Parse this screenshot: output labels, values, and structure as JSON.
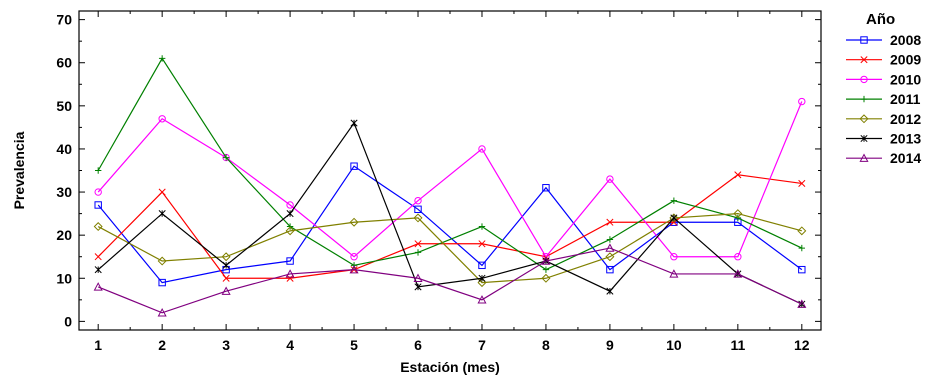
{
  "chart_data": {
    "type": "line",
    "title": "",
    "xlabel": "Estación (mes)",
    "ylabel": "Prevalencia",
    "x": [
      1,
      2,
      3,
      4,
      5,
      6,
      7,
      8,
      9,
      10,
      11,
      12
    ],
    "xlim": [
      0.7,
      12.3
    ],
    "ylim": [
      -2,
      72
    ],
    "yticks": [
      0,
      10,
      20,
      30,
      40,
      50,
      60,
      70
    ],
    "grid": false,
    "legend": {
      "title": "Año",
      "placement": "right"
    },
    "series": [
      {
        "name": "2008",
        "color": "#0000ff",
        "marker": "square",
        "values": [
          27,
          9,
          12,
          14,
          36,
          26,
          13,
          31,
          12,
          23,
          23,
          12
        ]
      },
      {
        "name": "2009",
        "color": "#ff0000",
        "marker": "x",
        "values": [
          15,
          30,
          10,
          10,
          12,
          18,
          18,
          15,
          23,
          23,
          34,
          32
        ]
      },
      {
        "name": "2010",
        "color": "#ff00ff",
        "marker": "circle",
        "values": [
          30,
          47,
          38,
          27,
          15,
          28,
          40,
          15,
          33,
          15,
          15,
          51
        ]
      },
      {
        "name": "2011",
        "color": "#008000",
        "marker": "plus",
        "values": [
          35,
          61,
          38,
          22,
          13,
          16,
          22,
          12,
          19,
          28,
          24,
          17
        ]
      },
      {
        "name": "2012",
        "color": "#808000",
        "marker": "diamond",
        "values": [
          22,
          14,
          15,
          21,
          23,
          24,
          9,
          10,
          15,
          24,
          25,
          21
        ]
      },
      {
        "name": "2013",
        "color": "#000000",
        "marker": "star",
        "values": [
          12,
          25,
          13,
          25,
          46,
          8,
          10,
          14,
          7,
          24,
          11,
          4
        ]
      },
      {
        "name": "2014",
        "color": "#800080",
        "marker": "triangle",
        "values": [
          8,
          2,
          7,
          11,
          12,
          10,
          5,
          14,
          17,
          11,
          11,
          4
        ]
      }
    ]
  }
}
